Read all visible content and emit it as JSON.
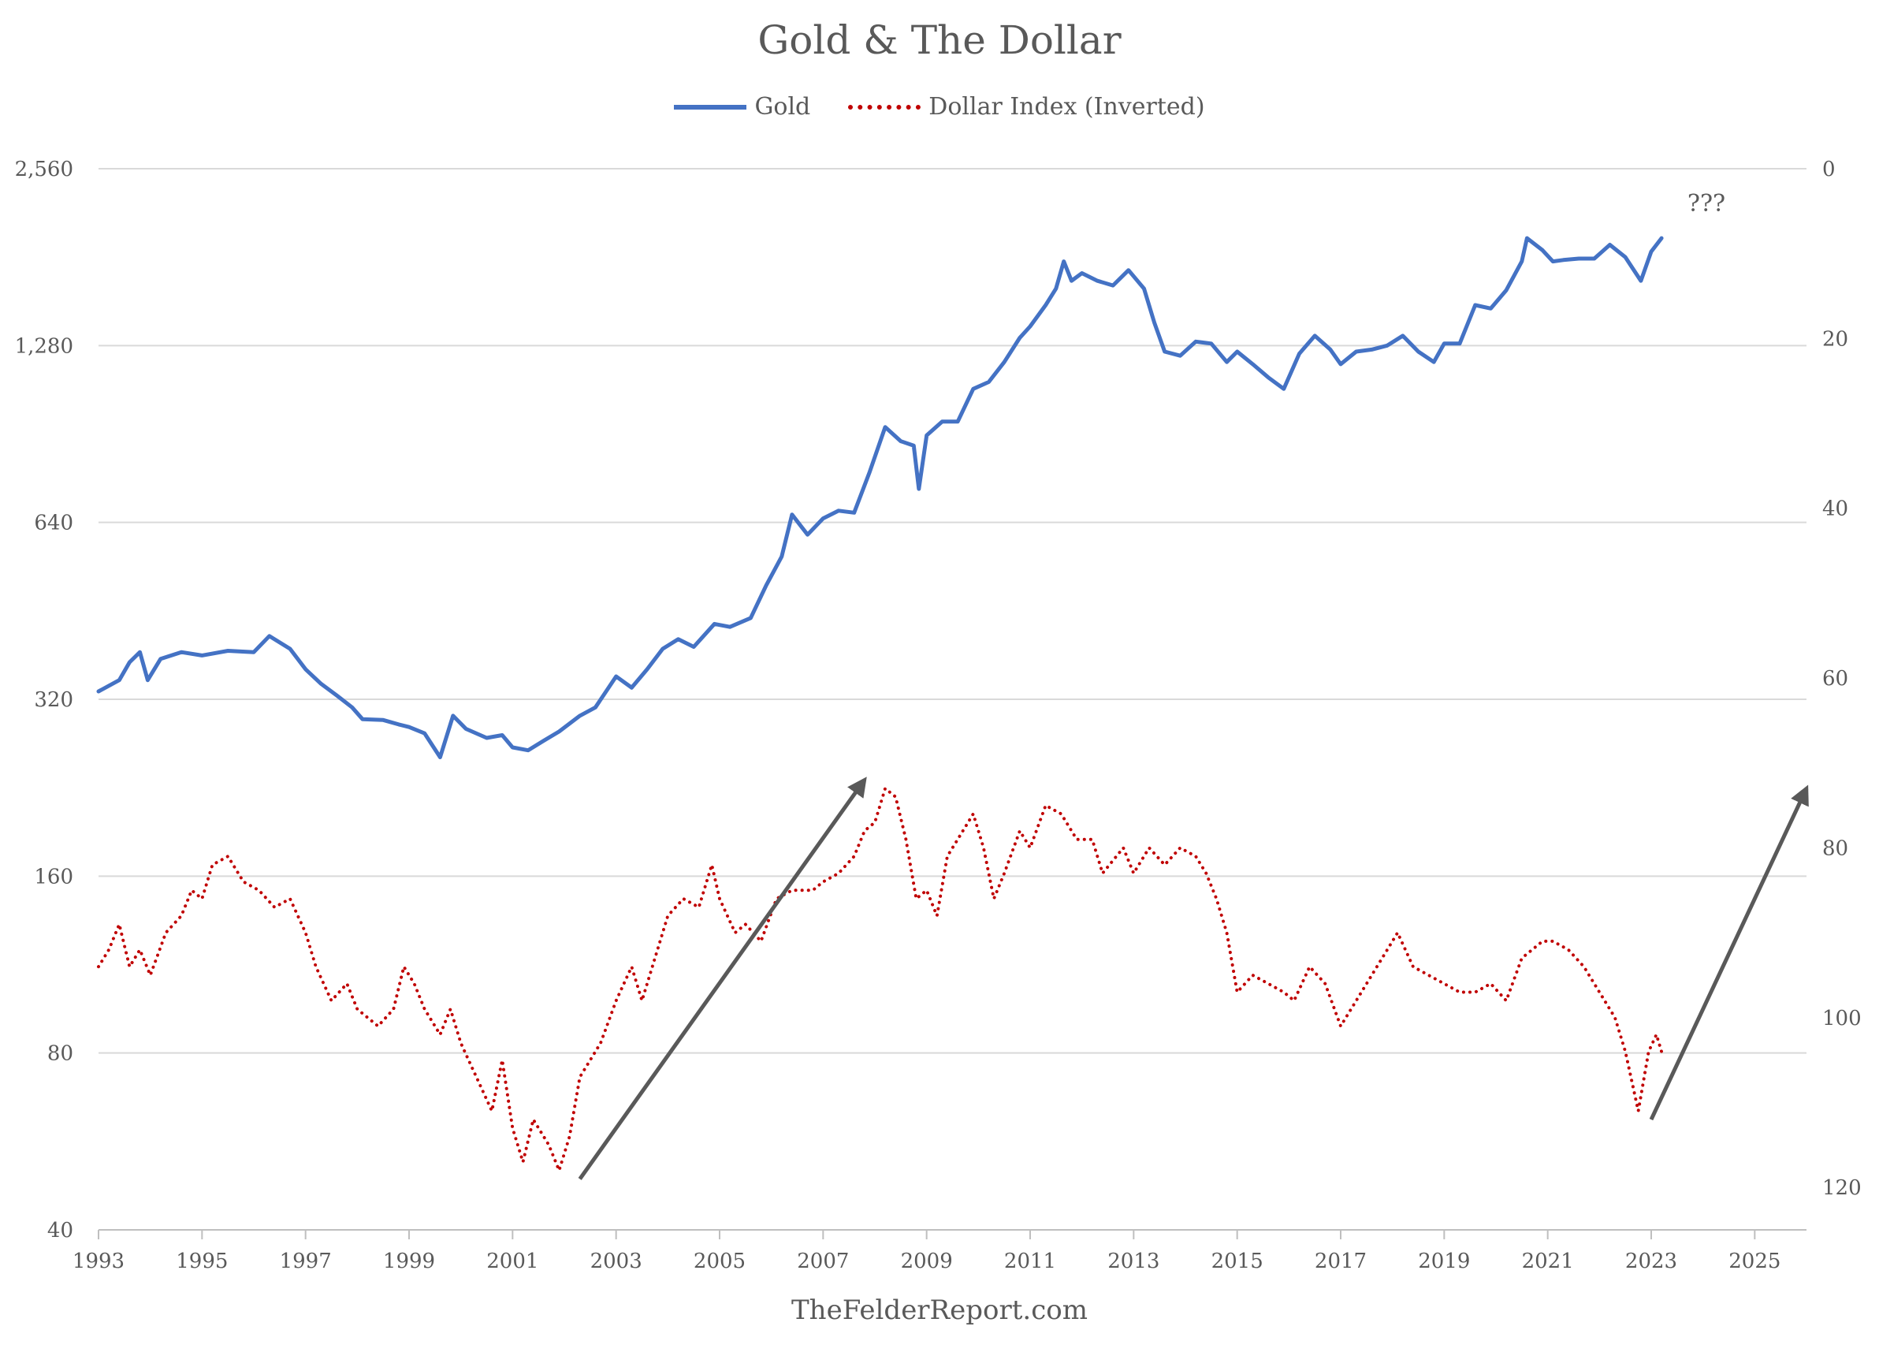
{
  "chart_data": {
    "type": "line",
    "title": "Gold & The Dollar",
    "footer": "TheFelderReport.com",
    "annotation": "???",
    "legend_position": "top-center",
    "grid": true,
    "x_ticks": [
      "1993",
      "1995",
      "1997",
      "1999",
      "2001",
      "2003",
      "2005",
      "2007",
      "2009",
      "2011",
      "2013",
      "2015",
      "2017",
      "2019",
      "2021",
      "2023",
      "2025"
    ],
    "xlim": [
      1993,
      2026
    ],
    "left_axis": {
      "scale": "log2",
      "range": [
        40,
        2560
      ],
      "ticks": [
        "2,560",
        "1,280",
        "640",
        "320",
        "160",
        "80",
        "40"
      ],
      "tick_values": [
        2560,
        1280,
        640,
        320,
        160,
        80,
        40
      ]
    },
    "right_axis": {
      "scale": "linear",
      "inverted": true,
      "range": [
        0,
        125
      ],
      "ticks": [
        "0",
        "20",
        "40",
        "60",
        "80",
        "100",
        "120"
      ],
      "tick_values": [
        0,
        20,
        40,
        60,
        80,
        100,
        120
      ]
    },
    "series": [
      {
        "name": "Gold",
        "axis": "left",
        "color": "#4472c4",
        "style": "solid",
        "points": [
          [
            1993.0,
            330
          ],
          [
            1993.4,
            345
          ],
          [
            1993.6,
            370
          ],
          [
            1993.8,
            385
          ],
          [
            1993.95,
            345
          ],
          [
            1994.2,
            375
          ],
          [
            1994.6,
            385
          ],
          [
            1995.0,
            380
          ],
          [
            1995.5,
            387
          ],
          [
            1996.0,
            385
          ],
          [
            1996.3,
            410
          ],
          [
            1996.7,
            390
          ],
          [
            1997.0,
            360
          ],
          [
            1997.3,
            340
          ],
          [
            1997.6,
            325
          ],
          [
            1997.9,
            310
          ],
          [
            1998.1,
            296
          ],
          [
            1998.5,
            295
          ],
          [
            1998.8,
            290
          ],
          [
            1999.0,
            287
          ],
          [
            1999.3,
            280
          ],
          [
            1999.6,
            255
          ],
          [
            1999.85,
            300
          ],
          [
            2000.1,
            285
          ],
          [
            2000.5,
            275
          ],
          [
            2000.8,
            278
          ],
          [
            2001.0,
            265
          ],
          [
            2001.3,
            262
          ],
          [
            2001.6,
            272
          ],
          [
            2001.9,
            282
          ],
          [
            2002.3,
            300
          ],
          [
            2002.6,
            310
          ],
          [
            2003.0,
            350
          ],
          [
            2003.3,
            335
          ],
          [
            2003.6,
            360
          ],
          [
            2003.9,
            390
          ],
          [
            2004.2,
            405
          ],
          [
            2004.5,
            393
          ],
          [
            2004.9,
            430
          ],
          [
            2005.2,
            425
          ],
          [
            2005.6,
            440
          ],
          [
            2005.9,
            500
          ],
          [
            2006.2,
            560
          ],
          [
            2006.4,
            660
          ],
          [
            2006.7,
            610
          ],
          [
            2007.0,
            650
          ],
          [
            2007.3,
            670
          ],
          [
            2007.6,
            665
          ],
          [
            2007.9,
            780
          ],
          [
            2008.2,
            930
          ],
          [
            2008.5,
            880
          ],
          [
            2008.75,
            865
          ],
          [
            2008.85,
            730
          ],
          [
            2009.0,
            900
          ],
          [
            2009.3,
            950
          ],
          [
            2009.6,
            950
          ],
          [
            2009.9,
            1080
          ],
          [
            2010.2,
            1110
          ],
          [
            2010.5,
            1200
          ],
          [
            2010.8,
            1320
          ],
          [
            2011.0,
            1380
          ],
          [
            2011.3,
            1500
          ],
          [
            2011.5,
            1600
          ],
          [
            2011.65,
            1780
          ],
          [
            2011.8,
            1650
          ],
          [
            2012.0,
            1700
          ],
          [
            2012.3,
            1650
          ],
          [
            2012.6,
            1620
          ],
          [
            2012.9,
            1720
          ],
          [
            2013.2,
            1600
          ],
          [
            2013.4,
            1400
          ],
          [
            2013.6,
            1250
          ],
          [
            2013.9,
            1230
          ],
          [
            2014.2,
            1300
          ],
          [
            2014.5,
            1290
          ],
          [
            2014.8,
            1200
          ],
          [
            2015.0,
            1250
          ],
          [
            2015.3,
            1190
          ],
          [
            2015.6,
            1130
          ],
          [
            2015.9,
            1080
          ],
          [
            2016.2,
            1240
          ],
          [
            2016.5,
            1330
          ],
          [
            2016.8,
            1260
          ],
          [
            2017.0,
            1190
          ],
          [
            2017.3,
            1250
          ],
          [
            2017.6,
            1260
          ],
          [
            2017.9,
            1280
          ],
          [
            2018.2,
            1330
          ],
          [
            2018.5,
            1250
          ],
          [
            2018.8,
            1200
          ],
          [
            2019.0,
            1290
          ],
          [
            2019.3,
            1290
          ],
          [
            2019.6,
            1500
          ],
          [
            2019.9,
            1480
          ],
          [
            2020.2,
            1590
          ],
          [
            2020.5,
            1780
          ],
          [
            2020.6,
            1950
          ],
          [
            2020.9,
            1860
          ],
          [
            2021.1,
            1780
          ],
          [
            2021.3,
            1790
          ],
          [
            2021.6,
            1800
          ],
          [
            2021.9,
            1800
          ],
          [
            2022.2,
            1900
          ],
          [
            2022.5,
            1810
          ],
          [
            2022.8,
            1650
          ],
          [
            2023.0,
            1850
          ],
          [
            2023.2,
            1950
          ]
        ]
      },
      {
        "name": "Dollar Index (Inverted)",
        "axis": "right",
        "color": "#c00000",
        "style": "dotted",
        "points": [
          [
            1993.0,
            94
          ],
          [
            1993.2,
            92
          ],
          [
            1993.4,
            89
          ],
          [
            1993.6,
            94
          ],
          [
            1993.8,
            92
          ],
          [
            1994.0,
            95
          ],
          [
            1994.3,
            90
          ],
          [
            1994.6,
            88
          ],
          [
            1994.8,
            85
          ],
          [
            1995.0,
            86
          ],
          [
            1995.2,
            82
          ],
          [
            1995.5,
            81
          ],
          [
            1995.8,
            84
          ],
          [
            1996.1,
            85
          ],
          [
            1996.4,
            87
          ],
          [
            1996.7,
            86
          ],
          [
            1997.0,
            90
          ],
          [
            1997.2,
            94
          ],
          [
            1997.5,
            98
          ],
          [
            1997.8,
            96
          ],
          [
            1998.0,
            99
          ],
          [
            1998.4,
            101
          ],
          [
            1998.7,
            99
          ],
          [
            1998.9,
            94
          ],
          [
            1999.1,
            96
          ],
          [
            1999.3,
            99
          ],
          [
            1999.6,
            102
          ],
          [
            1999.8,
            99
          ],
          [
            2000.0,
            103
          ],
          [
            2000.3,
            107
          ],
          [
            2000.6,
            111
          ],
          [
            2000.8,
            105
          ],
          [
            2001.0,
            113
          ],
          [
            2001.2,
            117
          ],
          [
            2001.4,
            112
          ],
          [
            2001.7,
            115
          ],
          [
            2001.9,
            118
          ],
          [
            2002.1,
            114
          ],
          [
            2002.3,
            107
          ],
          [
            2002.7,
            103
          ],
          [
            2003.0,
            98
          ],
          [
            2003.3,
            94
          ],
          [
            2003.5,
            98
          ],
          [
            2003.8,
            92
          ],
          [
            2004.0,
            88
          ],
          [
            2004.3,
            86
          ],
          [
            2004.6,
            87
          ],
          [
            2004.85,
            82
          ],
          [
            2005.0,
            86
          ],
          [
            2005.3,
            90
          ],
          [
            2005.5,
            89
          ],
          [
            2005.8,
            91
          ],
          [
            2006.1,
            86
          ],
          [
            2006.4,
            85
          ],
          [
            2006.8,
            85
          ],
          [
            2007.0,
            84
          ],
          [
            2007.3,
            83
          ],
          [
            2007.6,
            81
          ],
          [
            2007.8,
            78
          ],
          [
            2008.0,
            77
          ],
          [
            2008.2,
            73
          ],
          [
            2008.4,
            74
          ],
          [
            2008.6,
            79
          ],
          [
            2008.8,
            86
          ],
          [
            2009.0,
            85
          ],
          [
            2009.2,
            88
          ],
          [
            2009.4,
            81
          ],
          [
            2009.6,
            79
          ],
          [
            2009.9,
            76
          ],
          [
            2010.1,
            80
          ],
          [
            2010.3,
            86
          ],
          [
            2010.5,
            83
          ],
          [
            2010.8,
            78
          ],
          [
            2011.0,
            80
          ],
          [
            2011.3,
            75
          ],
          [
            2011.6,
            76
          ],
          [
            2011.9,
            79
          ],
          [
            2012.2,
            79
          ],
          [
            2012.4,
            83
          ],
          [
            2012.8,
            80
          ],
          [
            2013.0,
            83
          ],
          [
            2013.3,
            80
          ],
          [
            2013.6,
            82
          ],
          [
            2013.9,
            80
          ],
          [
            2014.2,
            81
          ],
          [
            2014.4,
            83
          ],
          [
            2014.6,
            86
          ],
          [
            2014.8,
            90
          ],
          [
            2015.0,
            97
          ],
          [
            2015.3,
            95
          ],
          [
            2015.6,
            96
          ],
          [
            2015.9,
            97
          ],
          [
            2016.1,
            98
          ],
          [
            2016.4,
            94
          ],
          [
            2016.7,
            96
          ],
          [
            2017.0,
            101
          ],
          [
            2017.3,
            98
          ],
          [
            2017.6,
            95
          ],
          [
            2017.9,
            92
          ],
          [
            2018.1,
            90
          ],
          [
            2018.4,
            94
          ],
          [
            2018.7,
            95
          ],
          [
            2019.0,
            96
          ],
          [
            2019.3,
            97
          ],
          [
            2019.6,
            97
          ],
          [
            2019.9,
            96
          ],
          [
            2020.2,
            98
          ],
          [
            2020.5,
            93
          ],
          [
            2020.9,
            91
          ],
          [
            2021.1,
            91
          ],
          [
            2021.4,
            92
          ],
          [
            2021.7,
            94
          ],
          [
            2022.0,
            97
          ],
          [
            2022.3,
            100
          ],
          [
            2022.5,
            104
          ],
          [
            2022.75,
            111
          ],
          [
            2022.95,
            104
          ],
          [
            2023.1,
            102
          ],
          [
            2023.2,
            104
          ]
        ]
      }
    ],
    "arrows": [
      {
        "from": [
          2002.3,
          119
        ],
        "to": [
          2007.8,
          72
        ]
      },
      {
        "from": [
          2023.0,
          112
        ],
        "to": [
          2026.0,
          73
        ]
      }
    ]
  }
}
